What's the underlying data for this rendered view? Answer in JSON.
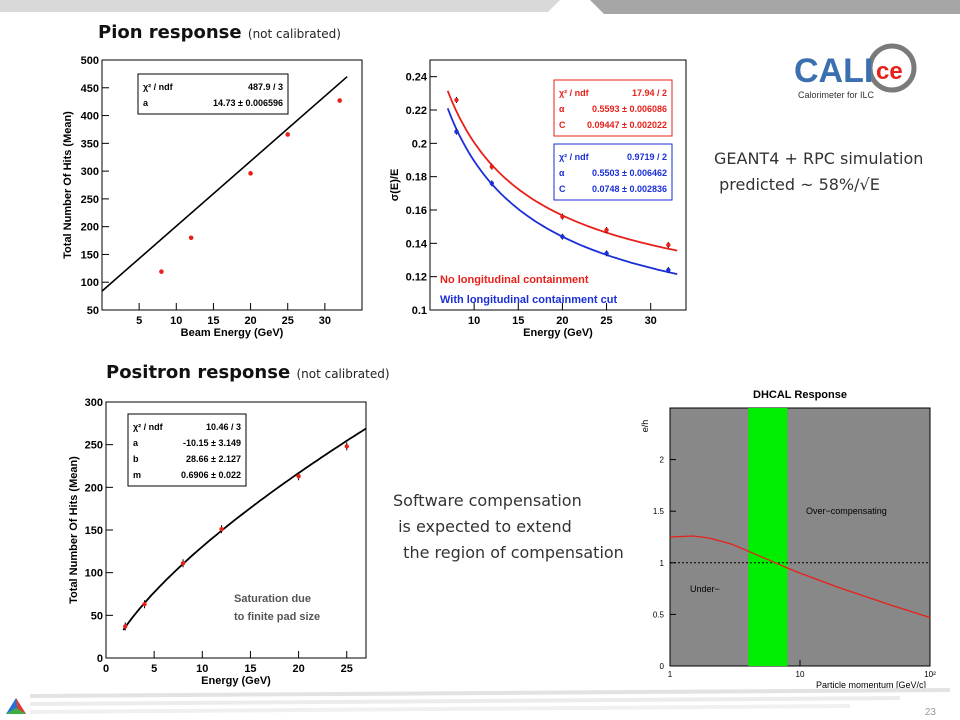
{
  "slide": {
    "pion_title": "Pion response",
    "pion_title_sub": "(not calibrated)",
    "positron_title": "Positron response",
    "positron_title_sub": "(not calibrated)",
    "geant_note": "GEANT4 + RPC simulation\n predicted ~ 58%/√E",
    "software_note": "Software compensation\n is expected to extend\n  the region of compensation",
    "logo_text_left": "CALI",
    "logo_text_right": "ce",
    "logo_caption": "Calorimeter for ILC",
    "slide_number": "23",
    "colors": {
      "red": "#e8201a",
      "blue": "#1a2fd8",
      "green": "#00ee00",
      "gray": "#888888",
      "logo_blue": "#3a6fb0"
    }
  },
  "chart_data": [
    {
      "type": "scatter",
      "title": "",
      "xlabel": "Beam Energy (GeV)",
      "ylabel": "Total Number Of Hits (Mean)",
      "xlim": [
        0,
        35
      ],
      "ylim": [
        50,
        500
      ],
      "xticks": [
        "5",
        "10",
        "15",
        "20",
        "25",
        "30"
      ],
      "yticks": [
        "50",
        "100",
        "150",
        "200",
        "250",
        "300",
        "350",
        "400",
        "450",
        "500"
      ],
      "points": [
        {
          "x": 8,
          "y": 119
        },
        {
          "x": 12,
          "y": 180
        },
        {
          "x": 20,
          "y": 296
        },
        {
          "x": 25,
          "y": 366
        },
        {
          "x": 32,
          "y": 427
        }
      ],
      "fit": {
        "x": [
          0,
          33
        ],
        "y": [
          84,
          470
        ]
      },
      "stats": [
        [
          "χ² / ndf",
          "487.9 / 3"
        ],
        [
          "a",
          "14.73 ± 0.006596"
        ]
      ]
    },
    {
      "type": "scatter",
      "title": "",
      "xlabel": "Energy (GeV)",
      "ylabel": "σ(E)/E",
      "xlim": [
        5,
        34
      ],
      "ylim": [
        0.1,
        0.25
      ],
      "xticks": [
        "10",
        "15",
        "20",
        "25",
        "30"
      ],
      "yticks": [
        "0.1",
        "0.12",
        "0.14",
        "0.16",
        "0.18",
        "0.2",
        "0.22",
        "0.24"
      ],
      "series": [
        {
          "name": "No longitudinal containment",
          "color": "#e8201a",
          "points": [
            {
              "x": 8,
              "y": 0.226
            },
            {
              "x": 12,
              "y": 0.186
            },
            {
              "x": 20,
              "y": 0.156
            },
            {
              "x": 25,
              "y": 0.148
            },
            {
              "x": 32,
              "y": 0.139
            }
          ],
          "fit": {
            "alpha": 0.5593,
            "C": 0.09447,
            "xrange": [
              7,
              33
            ]
          }
        },
        {
          "name": "With longitudinal containment cut",
          "color": "#1a2fd8",
          "points": [
            {
              "x": 8,
              "y": 0.207
            },
            {
              "x": 12,
              "y": 0.176
            },
            {
              "x": 20,
              "y": 0.144
            },
            {
              "x": 25,
              "y": 0.134
            },
            {
              "x": 32,
              "y": 0.124
            }
          ],
          "fit": {
            "alpha": 0.5503,
            "C": 0.0748,
            "xrange": [
              7,
              33
            ]
          }
        }
      ],
      "stats": [
        {
          "color": "#e8201a",
          "rows": [
            [
              "χ² / ndf",
              "17.94 / 2"
            ],
            [
              "α",
              "0.5593 ± 0.006086"
            ],
            [
              "C",
              "0.09447 ± 0.002022"
            ]
          ]
        },
        {
          "color": "#1a2fd8",
          "rows": [
            [
              "χ² / ndf",
              "0.9719 / 2"
            ],
            [
              "α",
              "0.5503 ± 0.006462"
            ],
            [
              "C",
              "0.0748 ± 0.002836"
            ]
          ]
        }
      ]
    },
    {
      "type": "scatter",
      "title": "",
      "xlabel": "Energy (GeV)",
      "ylabel": "Total Number Of Hits (Mean)",
      "xlim": [
        0,
        27
      ],
      "ylim": [
        0,
        300
      ],
      "xticks": [
        "0",
        "5",
        "10",
        "15",
        "20",
        "25"
      ],
      "yticks": [
        "0",
        "50",
        "100",
        "150",
        "200",
        "250",
        "300"
      ],
      "points": [
        {
          "x": 2,
          "y": 37
        },
        {
          "x": 4,
          "y": 63
        },
        {
          "x": 8,
          "y": 111
        },
        {
          "x": 12,
          "y": 151
        },
        {
          "x": 20,
          "y": 213
        },
        {
          "x": 25,
          "y": 248
        }
      ],
      "fit": {
        "a": -10.15,
        "b": 28.66,
        "m": 0.6906,
        "xrange": [
          1.8,
          27
        ]
      },
      "stats": [
        [
          "χ² / ndf",
          "10.46 / 3"
        ],
        [
          "a",
          "-10.15 ± 3.149"
        ],
        [
          "b",
          "28.66 ± 2.127"
        ],
        [
          "m",
          "0.6906 ± 0.022"
        ]
      ],
      "annotation": "Saturation due\n to finite pad size"
    },
    {
      "type": "line",
      "title": "DHCAL Response",
      "xlabel": "Particle momentum [GeV/c]",
      "ylabel": "e/h",
      "xscale": "log",
      "xlim": [
        1,
        100
      ],
      "ylim": [
        0,
        2.5
      ],
      "xticks": [
        "1",
        "10",
        "10²"
      ],
      "yticks": [
        "0",
        "0.5",
        "1",
        "1.5",
        "2"
      ],
      "curve": {
        "x": [
          1,
          1.5,
          2,
          3,
          5,
          8,
          10,
          20,
          50,
          100
        ],
        "y": [
          1.25,
          1.26,
          1.24,
          1.18,
          1.06,
          0.95,
          0.9,
          0.76,
          0.59,
          0.47
        ]
      },
      "band": [
        4,
        8
      ],
      "reference_line": 1,
      "region_labels": [
        "Over−compensating",
        "Under−"
      ]
    }
  ]
}
